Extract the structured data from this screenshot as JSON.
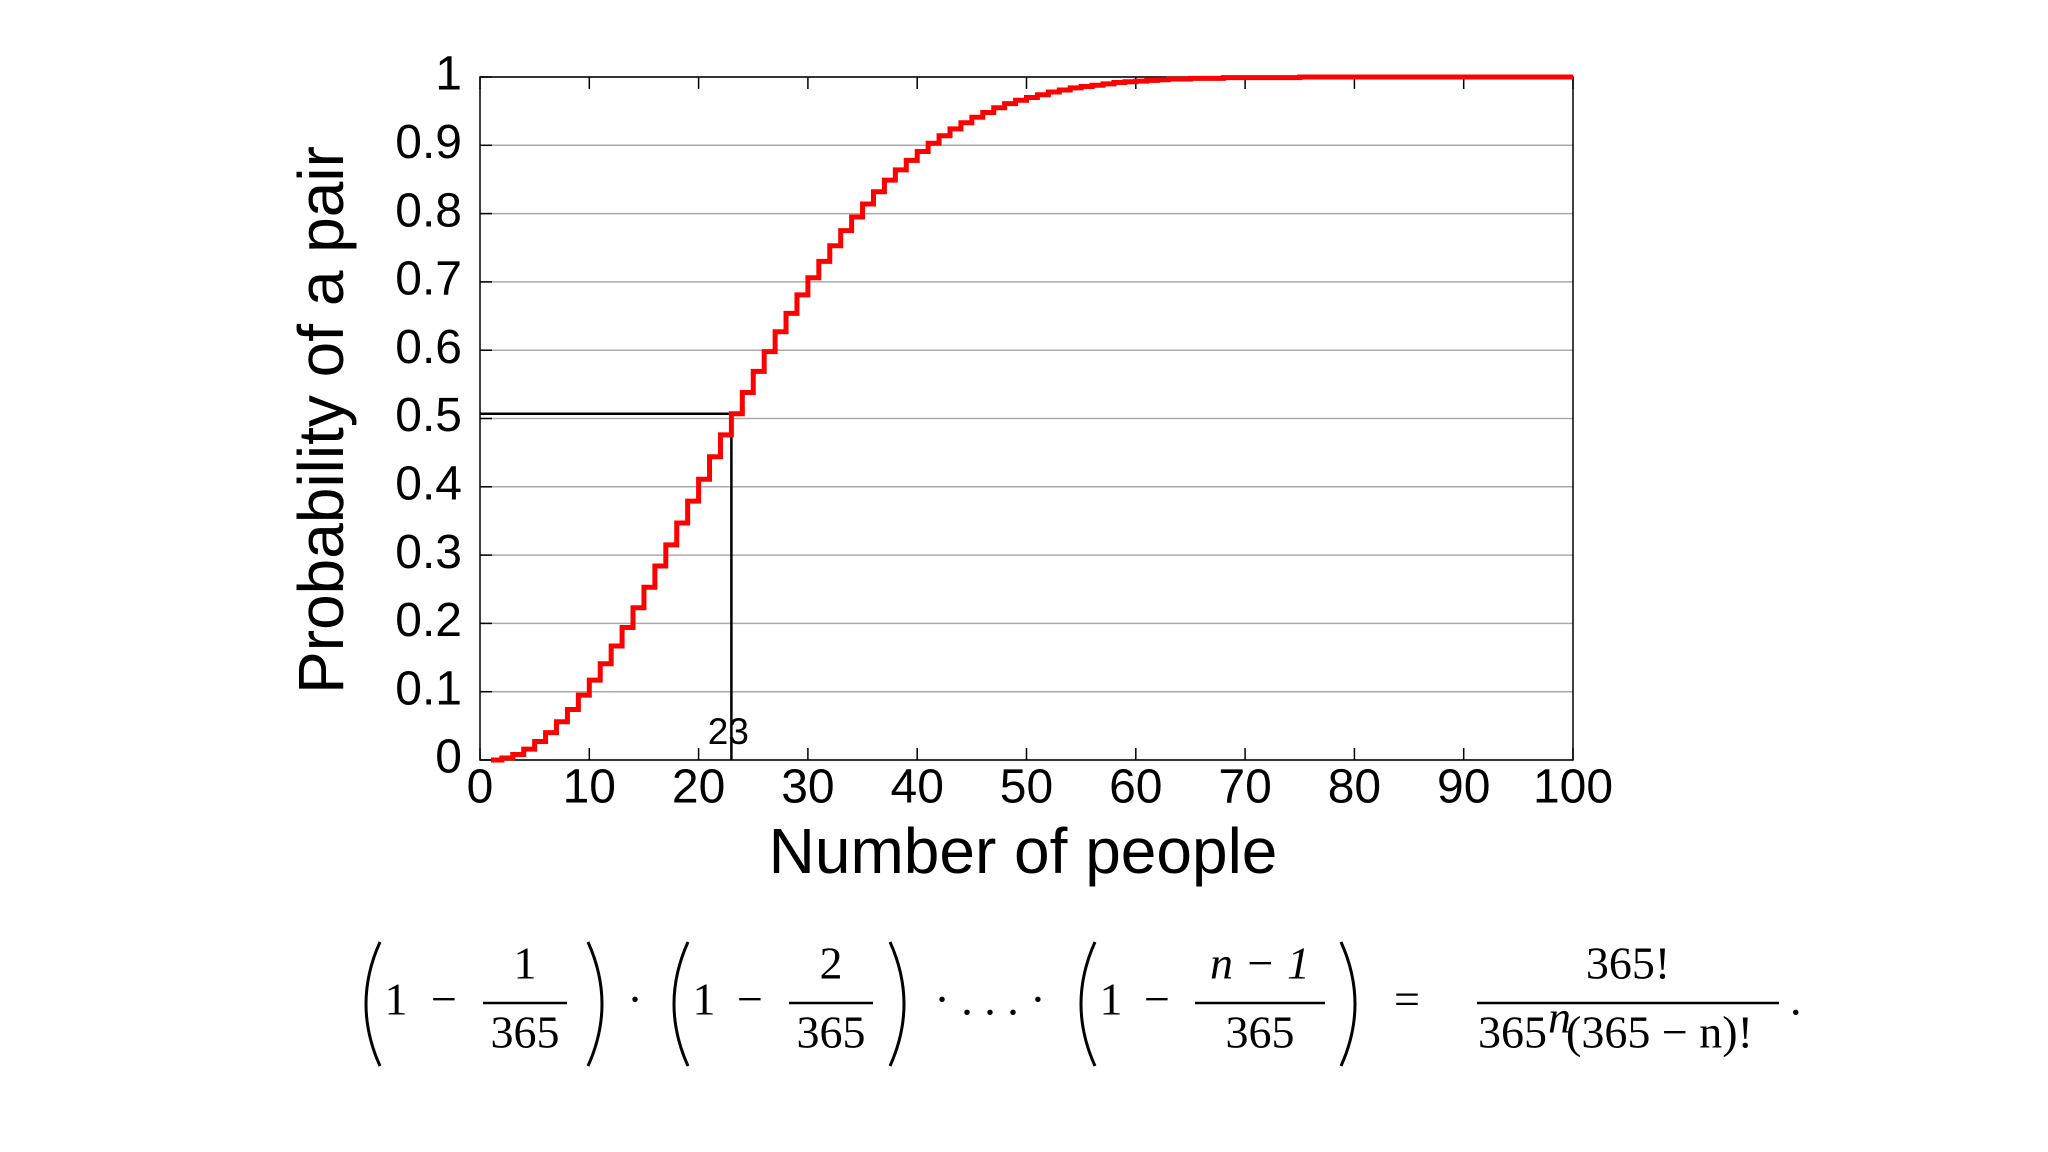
{
  "chart_data": {
    "type": "step",
    "x_label": "Number of people",
    "y_label": "Probability of a pair",
    "x": [
      1,
      2,
      3,
      4,
      5,
      6,
      7,
      8,
      9,
      10,
      11,
      12,
      13,
      14,
      15,
      16,
      17,
      18,
      19,
      20,
      21,
      22,
      23,
      24,
      25,
      26,
      27,
      28,
      29,
      30,
      31,
      32,
      33,
      34,
      35,
      36,
      37,
      38,
      39,
      40,
      41,
      42,
      43,
      44,
      45,
      46,
      47,
      48,
      49,
      50,
      51,
      52,
      53,
      54,
      55,
      56,
      57,
      58,
      59,
      60,
      61,
      62,
      63,
      64,
      65,
      66,
      67,
      68,
      69,
      70,
      71,
      72,
      73,
      74,
      75,
      76,
      77,
      78,
      79,
      80,
      81,
      82,
      83,
      84,
      85,
      86,
      87,
      88,
      89,
      90,
      91,
      92,
      93,
      94,
      95,
      96,
      97,
      98,
      99,
      100
    ],
    "values": [
      0,
      0.003,
      0.008,
      0.016,
      0.027,
      0.04,
      0.056,
      0.074,
      0.095,
      0.117,
      0.141,
      0.167,
      0.194,
      0.223,
      0.253,
      0.284,
      0.315,
      0.347,
      0.379,
      0.411,
      0.444,
      0.476,
      0.507,
      0.538,
      0.569,
      0.598,
      0.627,
      0.654,
      0.681,
      0.706,
      0.73,
      0.753,
      0.775,
      0.795,
      0.814,
      0.832,
      0.849,
      0.864,
      0.878,
      0.891,
      0.903,
      0.914,
      0.924,
      0.933,
      0.941,
      0.948,
      0.955,
      0.961,
      0.966,
      0.97,
      0.974,
      0.978,
      0.981,
      0.984,
      0.986,
      0.988,
      0.99,
      0.992,
      0.993,
      0.994,
      0.995,
      0.996,
      0.997,
      0.997,
      0.998,
      0.998,
      0.998,
      0.999,
      0.999,
      0.999,
      0.999,
      0.999,
      0.999,
      0.999,
      1,
      1,
      1,
      1,
      1,
      1,
      1,
      1,
      1,
      1,
      1,
      1,
      1,
      1,
      1,
      1,
      1,
      1,
      1,
      1,
      1,
      1,
      1,
      1,
      1,
      1
    ],
    "color": "#ff0000",
    "xlim": [
      0,
      100
    ],
    "xticks": [
      0,
      10,
      20,
      30,
      40,
      50,
      60,
      70,
      80,
      90,
      100
    ],
    "ylim": [
      0,
      1
    ],
    "yticks": [
      0,
      0.1,
      0.2,
      0.3,
      0.4,
      0.5,
      0.6,
      0.7,
      0.8,
      0.9,
      1
    ],
    "grid": true,
    "annotation": {
      "x": 23,
      "y": 0.507,
      "label": "23"
    }
  },
  "formula": {
    "one": "1",
    "minus": "−",
    "fractions": [
      {
        "num": "1",
        "den": "365"
      },
      {
        "num": "2",
        "den": "365"
      },
      {
        "num": "n − 1",
        "den": "365"
      }
    ],
    "dot": "·",
    "dots": "· . . . ·",
    "equals": "=",
    "rhs": {
      "num": "365!",
      "den_base": "365",
      "den_exp": "n",
      "den_rest": "(365 − n)!"
    },
    "period": "."
  }
}
